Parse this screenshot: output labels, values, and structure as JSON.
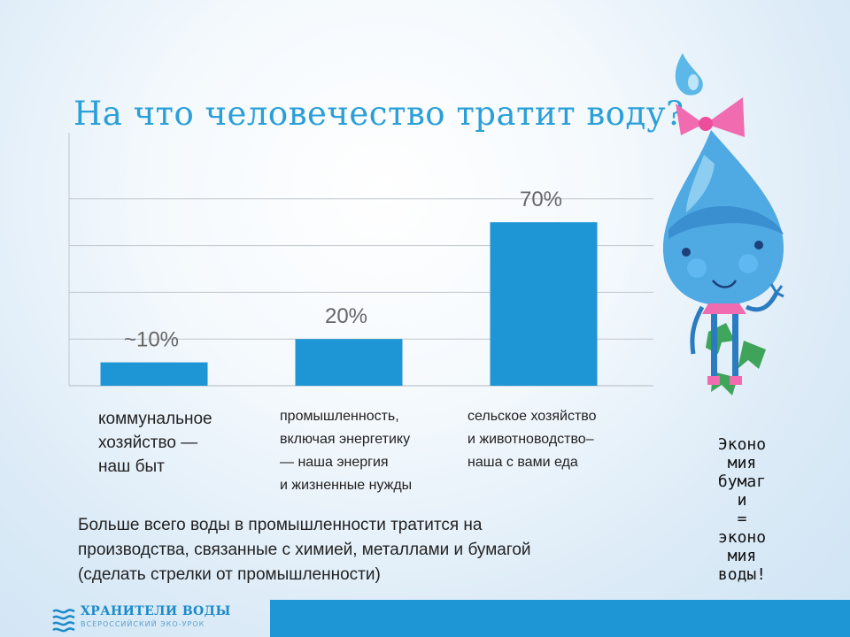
{
  "title": "На что человечество тратит воду?",
  "chart_data": {
    "type": "bar",
    "categories": [
      "коммунальное\nхозяйство —\nнаш быт",
      "промышленность,\nвключая энергетику\n— наша энергия\nи жизненные нужды",
      "сельское хозяйство\nи животноводство–\nнаша с вами еда"
    ],
    "values": [
      10,
      20,
      70
    ],
    "data_labels": [
      "~10%",
      "20%",
      "70%"
    ],
    "ylim": [
      0,
      100
    ],
    "grid": true,
    "bar_color": "#1e95d4",
    "label_color": "#666666"
  },
  "note": "Больше всего воды в промышленности тратится на\nпроизводства, связанные с химией, металлами и бумагой\n(сделать стрелки от промышленности)",
  "slogan": "Эконо\nмия\nбумаг\nи\n=\nэконо\nмия\nводы!",
  "footer": {
    "brand": "ХРАНИТЕЛИ ВОДЫ",
    "subtitle": "ВСЕРОССИЙСКИЙ ЭКО-УРОК",
    "band_color": "#1e95d4"
  },
  "mascot": {
    "icon": "water-drop-girl-illustration"
  }
}
